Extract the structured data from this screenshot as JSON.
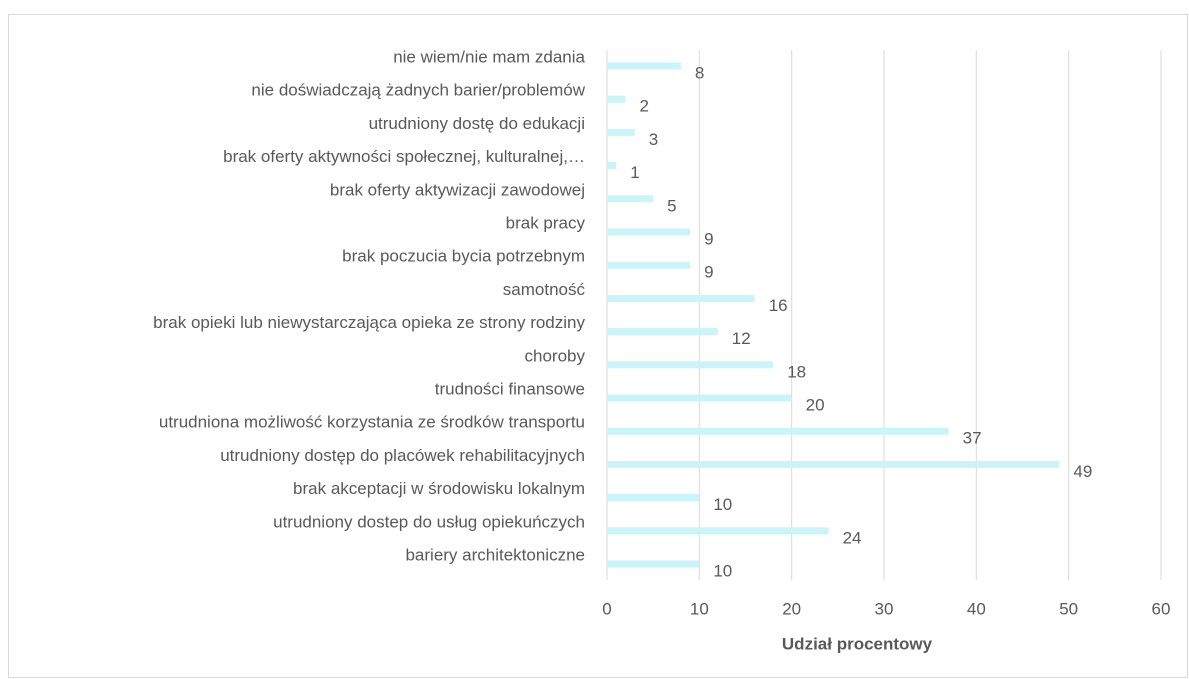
{
  "chart_data": {
    "type": "barh",
    "categories": [
      "nie wiem/nie mam zdania",
      "nie doświadczają żadnych barier/problemów",
      "utrudniony dostę do edukacji",
      "brak oferty aktywności społecznej, kulturalnej,…",
      "brak oferty aktywizacji zawodowej",
      "brak pracy",
      "brak poczucia bycia potrzebnym",
      "samotność",
      "brak opieki lub niewystarczająca opieka ze strony rodziny",
      "choroby",
      "trudności finansowe",
      "utrudniona możliwość korzystania ze środków transportu",
      "utrudniony dostęp do placówek rehabilitacyjnych",
      "brak akceptacji w środowisku lokalnym",
      "utrudniony dostep do usług opiekuńczych",
      "bariery architektoniczne"
    ],
    "values": [
      8,
      2,
      3,
      1,
      5,
      9,
      9,
      16,
      12,
      18,
      20,
      37,
      49,
      10,
      24,
      10
    ],
    "color": "#c9f4f8",
    "xlabel": "Udział procentowy",
    "xlim": [
      0,
      60
    ],
    "xticks": [
      0,
      10,
      20,
      30,
      40,
      50,
      60
    ],
    "grid": true
  }
}
